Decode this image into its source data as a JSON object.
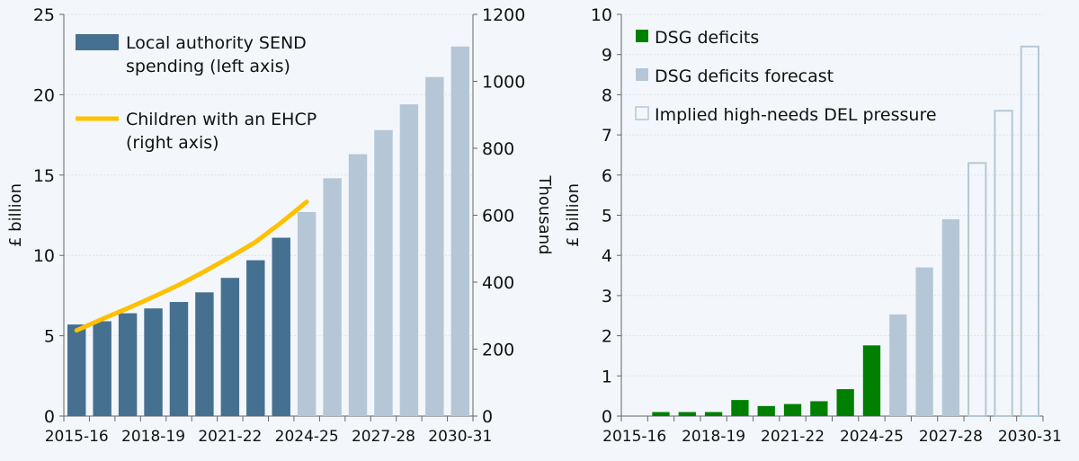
{
  "colors": {
    "background": "#f3f7fb",
    "spending": "#46708f",
    "forecast": "#b5c7d6",
    "ehcp": "#ffc000",
    "deficit": "#008000",
    "outline": "#b5c7d6"
  },
  "chart_data": [
    {
      "type": "bar",
      "categories": [
        "2015-16",
        "2016-17",
        "2017-18",
        "2018-19",
        "2019-20",
        "2020-21",
        "2021-22",
        "2022-23",
        "2023-24",
        "2024-25",
        "2025-26",
        "2026-27",
        "2027-28",
        "2028-29",
        "2029-30",
        "2030-31"
      ],
      "tick_labels": [
        "2015-16",
        "2018-19",
        "2021-22",
        "2024-25",
        "2027-28",
        "2030-31"
      ],
      "ylabel": "£ billion",
      "y2label": "Thousand",
      "ylim": [
        0,
        25
      ],
      "yticks": [
        0,
        5,
        10,
        15,
        20,
        25
      ],
      "y2lim": [
        0,
        1200
      ],
      "y2ticks": [
        0,
        200,
        400,
        600,
        800,
        1000,
        1200
      ],
      "grid": true,
      "legend_placement": "top-left",
      "series": [
        {
          "name": "Local authority SEND spending (left axis)",
          "legend_lines": [
            "Local authority SEND",
            "spending (left axis)"
          ],
          "type": "bar",
          "axis": "left",
          "values": [
            5.7,
            5.9,
            6.4,
            6.7,
            7.1,
            7.7,
            8.6,
            9.7,
            11.1,
            12.7,
            14.8,
            16.3,
            17.8,
            19.4,
            21.1,
            23.0
          ],
          "forecast_from": "2024-25"
        },
        {
          "name": "Children with an EHCP (right axis)",
          "legend_lines": [
            "Children with an EHCP",
            "(right axis)"
          ],
          "type": "line",
          "axis": "right",
          "values": [
            256,
            290,
            322,
            356,
            392,
            432,
            475,
            520,
            578,
            640,
            null,
            null,
            null,
            null,
            null,
            null
          ]
        }
      ]
    },
    {
      "type": "bar",
      "categories": [
        "2015-16",
        "2016-17",
        "2017-18",
        "2018-19",
        "2019-20",
        "2020-21",
        "2021-22",
        "2022-23",
        "2023-24",
        "2024-25",
        "2025-26",
        "2026-27",
        "2027-28",
        "2028-29",
        "2029-30",
        "2030-31"
      ],
      "tick_labels": [
        "2015-16",
        "2018-19",
        "2021-22",
        "2024-25",
        "2027-28",
        "2030-31"
      ],
      "ylabel": "£ billion",
      "ylim": [
        0,
        10
      ],
      "yticks": [
        0,
        1,
        2,
        3,
        4,
        5,
        6,
        7,
        8,
        9,
        10
      ],
      "grid": true,
      "legend_placement": "top-left",
      "series": [
        {
          "name": "DSG deficits",
          "values": [
            0,
            0.1,
            0.1,
            0.1,
            0.4,
            0.25,
            0.3,
            0.37,
            0.67,
            1.76,
            null,
            null,
            null,
            null,
            null,
            null
          ]
        },
        {
          "name": "DSG deficits forecast",
          "values": [
            null,
            null,
            null,
            null,
            null,
            null,
            null,
            null,
            null,
            null,
            2.53,
            3.7,
            4.9,
            null,
            null,
            null
          ]
        },
        {
          "name": "Implied high-needs DEL pressure",
          "values": [
            null,
            null,
            null,
            null,
            null,
            null,
            null,
            null,
            null,
            null,
            null,
            null,
            null,
            6.3,
            7.6,
            9.2
          ]
        }
      ]
    }
  ]
}
